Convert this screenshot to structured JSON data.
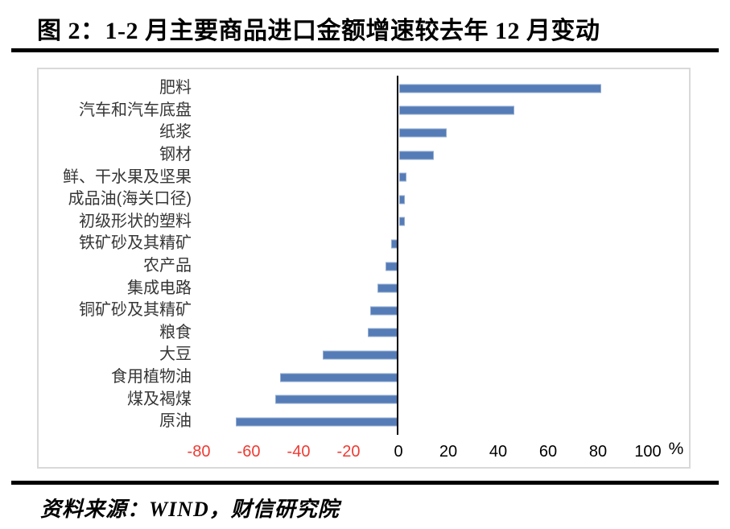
{
  "header": {
    "title": "图 2：1-2 月主要商品进口金额增速较去年 12 月变动"
  },
  "footer": {
    "source": "资料来源：WIND，财信研究院"
  },
  "chart_data": {
    "type": "bar",
    "orientation": "horizontal",
    "title": "1-2 月主要商品进口金额增速较去年 12 月变动",
    "xlabel": "%",
    "ylabel": "",
    "categories": [
      "肥料",
      "汽车和汽车底盘",
      "纸浆",
      "钢材",
      "鲜、干水果及坚果",
      "成品油(海关口径)",
      "初级形状的塑料",
      "铁矿砂及其精矿",
      "农产品",
      "集成电路",
      "铜矿砂及其精矿",
      "粮食",
      "大豆",
      "食用植物油",
      "煤及褐煤",
      "原油"
    ],
    "values": [
      81,
      46,
      19,
      14,
      2.8,
      2.4,
      2.2,
      -2.7,
      -5,
      -8,
      -11,
      -12,
      -30,
      -47,
      -49,
      -65
    ],
    "x_ticks": [
      -80,
      -60,
      -40,
      -20,
      0,
      20,
      40,
      60,
      80,
      100
    ],
    "xlim": [
      -80,
      100
    ],
    "grid": false,
    "legend": false,
    "bar_color": "#557cb6",
    "bar_border_color": "#92abd2",
    "negative_tick_color": "#ee3b33",
    "positive_tick_color": "#000000",
    "unit_label": "%"
  }
}
